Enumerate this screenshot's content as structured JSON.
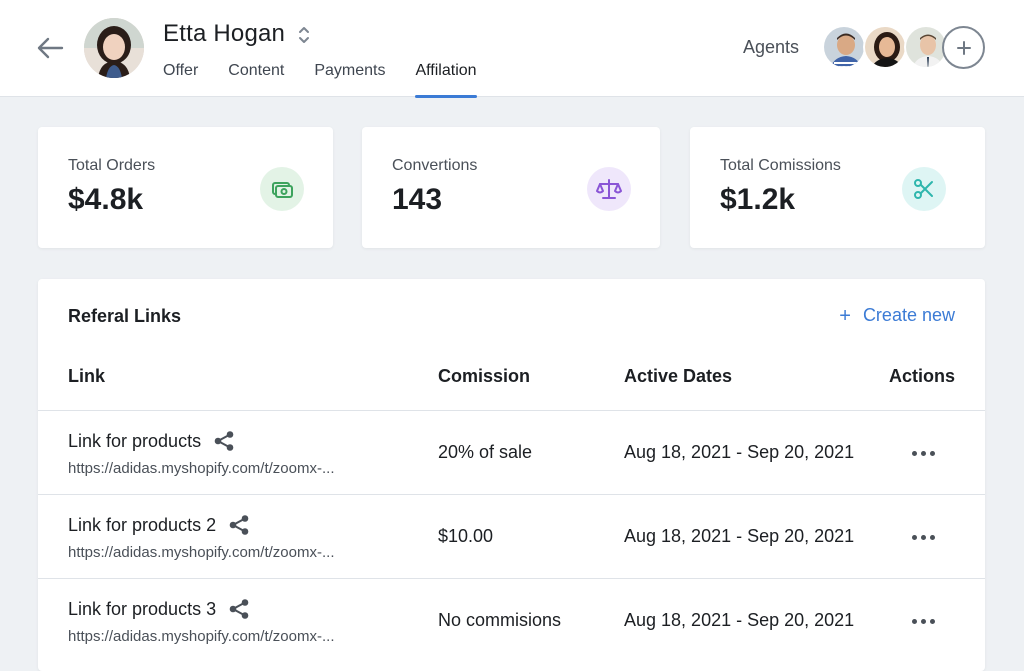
{
  "header": {
    "profile_name": "Etta Hogan",
    "tabs": [
      {
        "label": "Offer"
      },
      {
        "label": "Content"
      },
      {
        "label": "Payments"
      },
      {
        "label": "Affilation",
        "active": true
      }
    ],
    "agents_label": "Agents",
    "agents_count": 3
  },
  "stats": [
    {
      "label": "Total Orders",
      "value": "$4.8k",
      "icon": "money-icon",
      "icon_bg": "#e3f3e6",
      "icon_color": "#3da35d"
    },
    {
      "label": "Convertions",
      "value": "143",
      "icon": "scale-icon",
      "icon_bg": "#efe7fb",
      "icon_color": "#8a55d6"
    },
    {
      "label": "Total Comissions",
      "value": "$1.2k",
      "icon": "scissors-icon",
      "icon_bg": "#def5f4",
      "icon_color": "#2eb6ad"
    }
  ],
  "referral": {
    "title": "Referal Links",
    "create_new": "Create new",
    "columns": [
      "Link",
      "Comission",
      "Active Dates",
      "Actions"
    ],
    "rows": [
      {
        "name": "Link for products",
        "url": "https://adidas.myshopify.com/t/zoomx-...",
        "commission": "20% of sale",
        "dates": "Aug 18, 2021 - Sep 20, 2021"
      },
      {
        "name": "Link for products 2",
        "url": "https://adidas.myshopify.com/t/zoomx-...",
        "commission": "$10.00",
        "dates": "Aug 18, 2021 - Sep 20, 2021"
      },
      {
        "name": "Link for products 3",
        "url": "https://adidas.myshopify.com/t/zoomx-...",
        "commission": "No commisions",
        "dates": "Aug 18, 2021 - Sep 20, 2021"
      }
    ]
  },
  "colors": {
    "accent": "#3b7bd5",
    "page_bg": "#eef1f4"
  }
}
